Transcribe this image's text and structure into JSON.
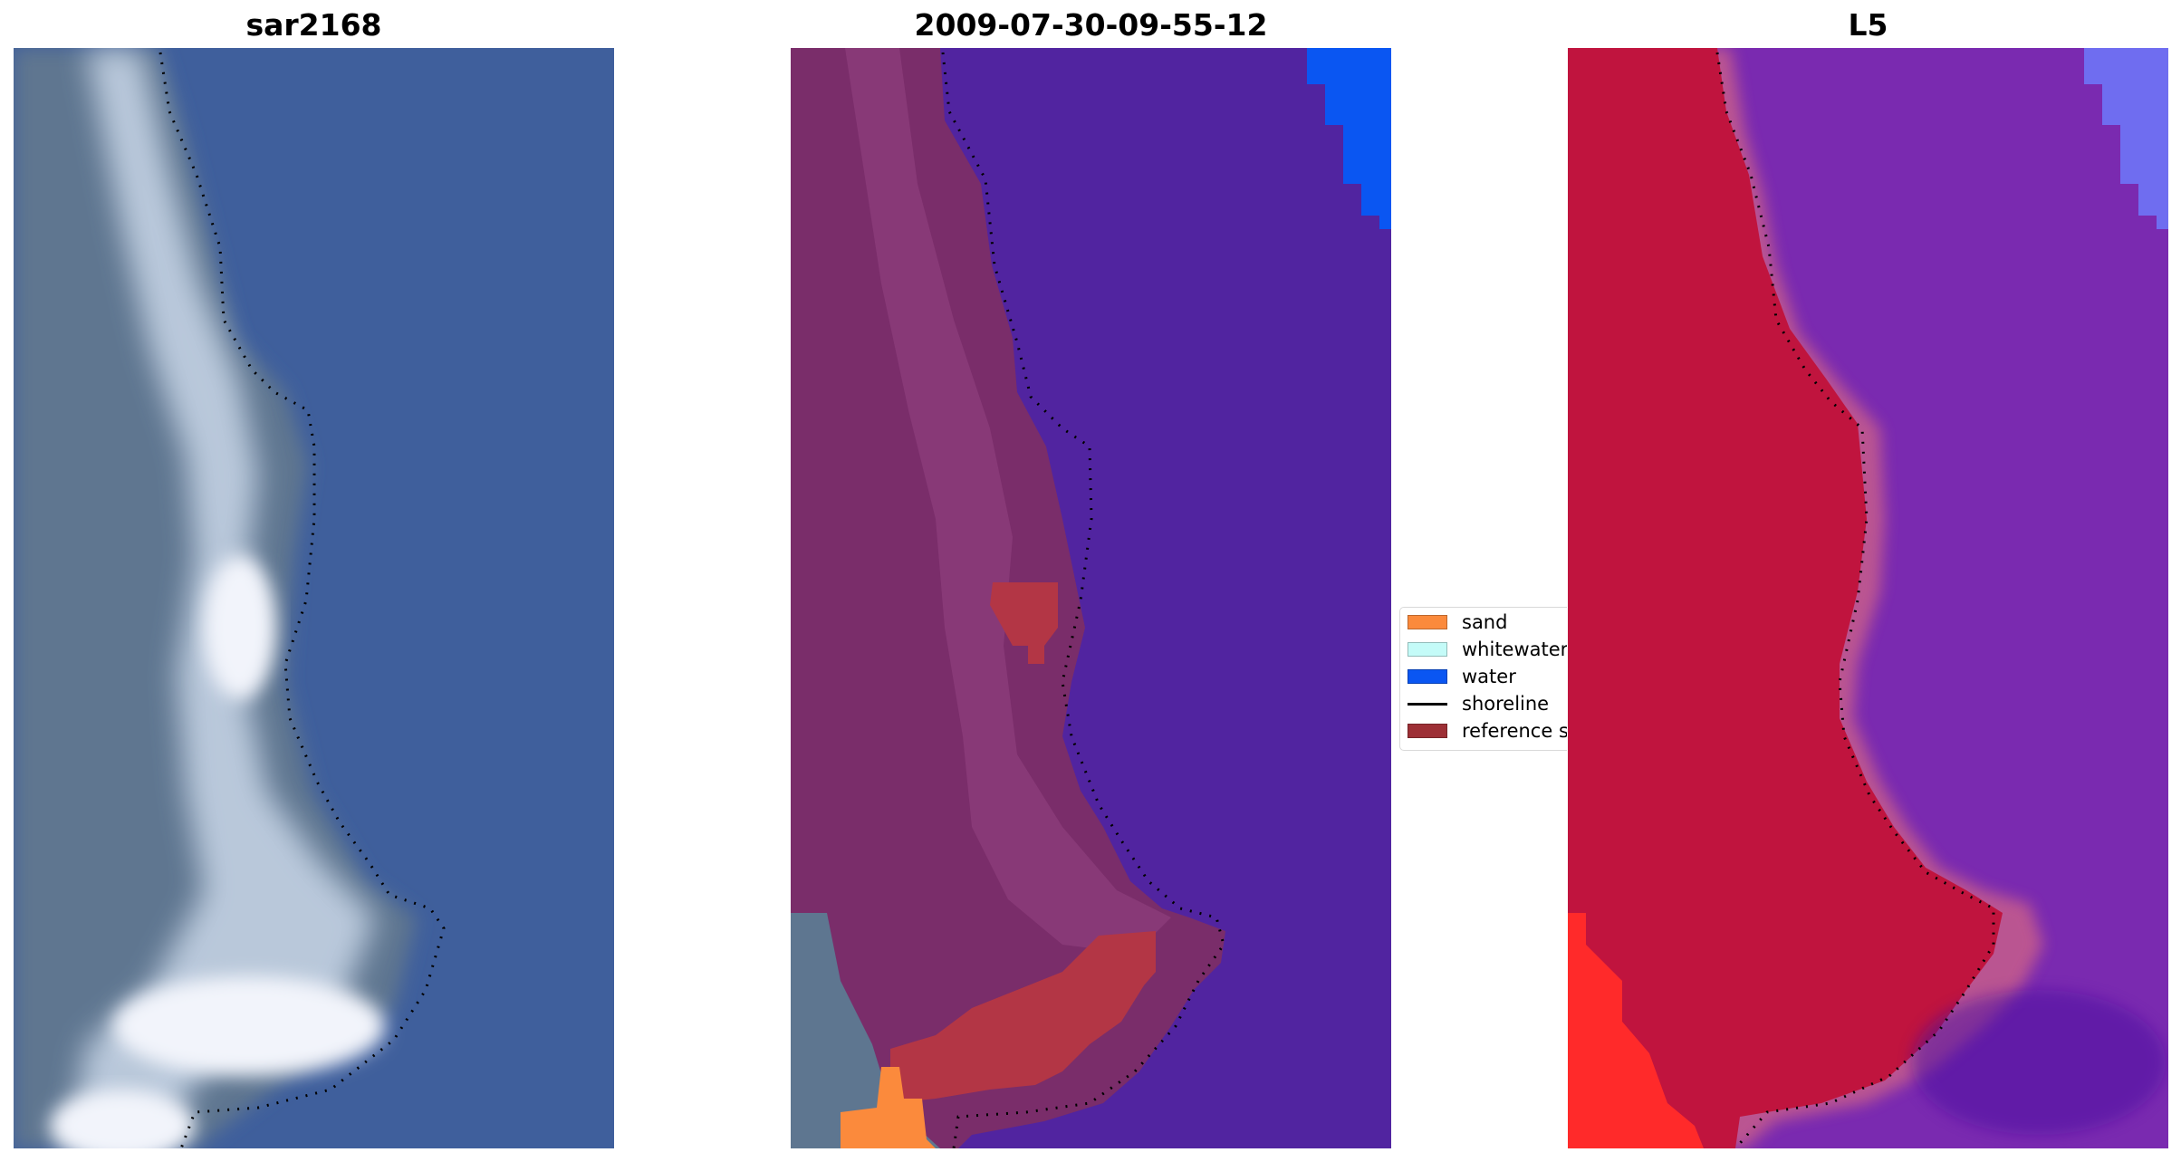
{
  "panels": [
    {
      "title": "sar2168",
      "palette": "sar"
    },
    {
      "title": "2009-07-30-09-55-12",
      "palette": "class"
    },
    {
      "title": "L5",
      "palette": "index"
    }
  ],
  "legend": {
    "items": [
      {
        "label": "sand",
        "kind": "patch",
        "color": "#fb8a3c"
      },
      {
        "label": "whitewater",
        "kind": "patch",
        "color": "#c4fbf8"
      },
      {
        "label": "water",
        "kind": "patch",
        "color": "#0a56f2"
      },
      {
        "label": "shoreline",
        "kind": "line",
        "color": "#000000"
      },
      {
        "label": "reference s",
        "kind": "patch",
        "color": "#9d2f35"
      }
    ]
  },
  "colors": {
    "sar_water": "#3f5f9c",
    "sar_land_dark": "#5e7690",
    "sar_land_light": "#c9d7e8",
    "sar_white": "#f2f4fb",
    "class_water": "#5124a0",
    "class_land": "#7a2d6a",
    "class_land_light": "#9a4a88",
    "class_reference": "#b33645",
    "class_sand": "#fb8a3c",
    "class_blue": "#0a56f2",
    "index_land": "#c0143e",
    "index_water": "#7a2ab0",
    "index_red": "#ff2a2a",
    "index_blue": "#6f6df0",
    "shoreline": "#000000"
  }
}
